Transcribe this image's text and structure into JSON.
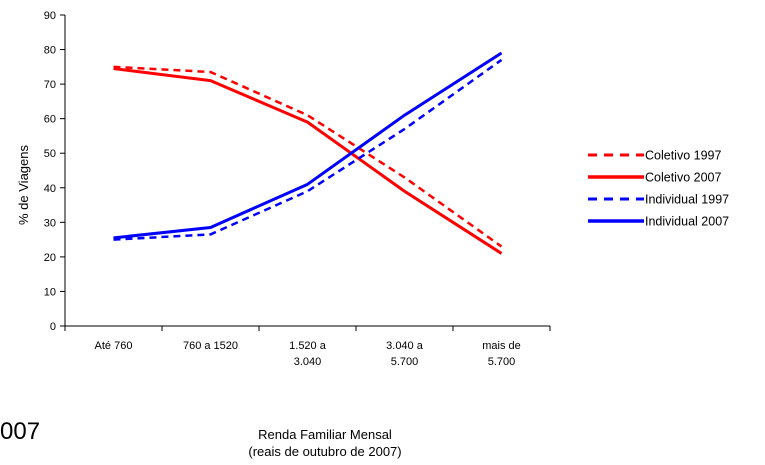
{
  "chart_data": {
    "type": "line",
    "title": "",
    "xlabel_lines": [
      "Renda Familiar Mensal",
      "(reais de outubro de 2007)"
    ],
    "ylabel": "% de Viagens",
    "ylim": [
      0,
      90
    ],
    "yticks": [
      0,
      10,
      20,
      30,
      40,
      50,
      60,
      70,
      80,
      90
    ],
    "categories": [
      [
        "Até 760"
      ],
      [
        "760 a 1520"
      ],
      [
        "1.520 a",
        "3.040"
      ],
      [
        "3.040 a",
        "5.700"
      ],
      [
        "mais de",
        "5.700"
      ]
    ],
    "grid": false,
    "legend_position": "right",
    "series": [
      {
        "name": "Coletivo 1997",
        "values": [
          75,
          73.5,
          61,
          43,
          23
        ],
        "color": "#ff0000",
        "dashed": true
      },
      {
        "name": "Coletivo 2007",
        "values": [
          74.5,
          71,
          59,
          39,
          21
        ],
        "color": "#ff0000",
        "dashed": false
      },
      {
        "name": "Individual 1997",
        "values": [
          25,
          26.5,
          39,
          57,
          77
        ],
        "color": "#0000ff",
        "dashed": true
      },
      {
        "name": "Individual 2007",
        "values": [
          25.5,
          28.5,
          41,
          61,
          79
        ],
        "color": "#0000ff",
        "dashed": false
      }
    ]
  },
  "stray_text": "007"
}
